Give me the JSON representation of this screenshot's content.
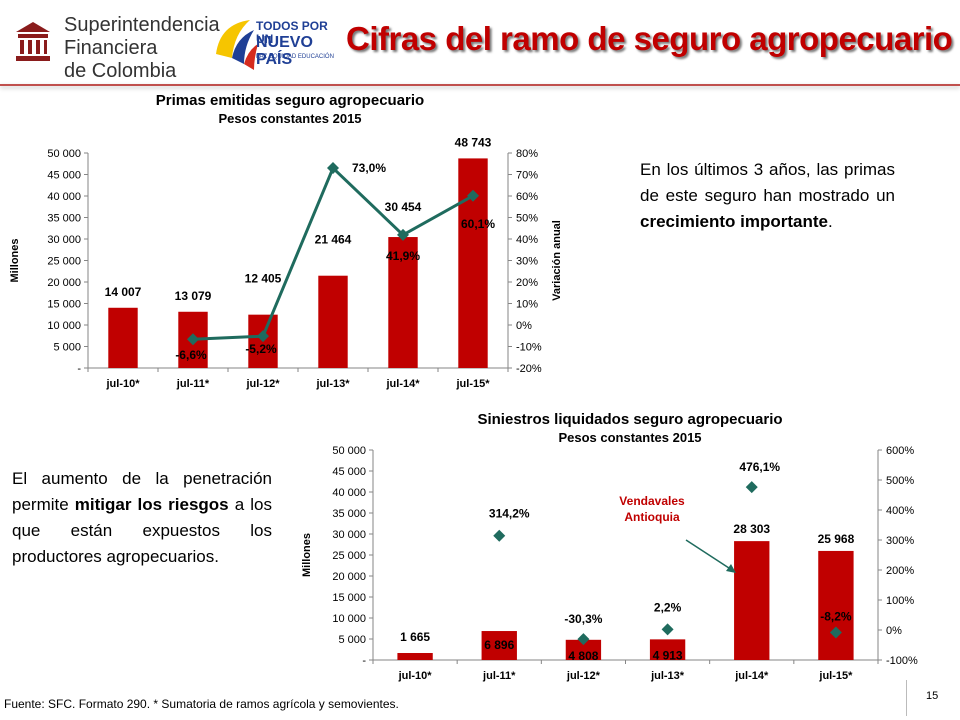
{
  "header": {
    "org_name_lines": [
      "Superintendencia",
      "Financiera",
      "de Colombia"
    ],
    "gov_logo_lines": [
      "TODOS POR UN",
      "NUEVO PAÍS",
      "PAZ  EQUIDAD  EDUCACIÓN"
    ],
    "title": "Cifras del ramo de seguro agropecuario",
    "accent_color": "#c00000"
  },
  "text_top": {
    "before": "En los últimos 3 años, las primas de este seguro han mostrado un ",
    "bold": "crecimiento importante",
    "after": "."
  },
  "text_bottom": {
    "before": "El aumento de la penetración permite ",
    "bold": "mitigar los riesgos",
    "after": " a los que están expuestos los productores agropecuarios."
  },
  "footnote": "Fuente: SFC. Formato 290. * Sumatoria de ramos agrícola y semovientes.",
  "page_number": "15",
  "chart_data": [
    {
      "type": "bar",
      "title": "Primas emitidas seguro agropecuario",
      "subtitle": "Pesos constantes 2015",
      "categories": [
        "jul-10*",
        "jul-11*",
        "jul-12*",
        "jul-13*",
        "jul-14*",
        "jul-15*"
      ],
      "series": [
        {
          "type": "bar",
          "values": [
            14007,
            13079,
            12405,
            21464,
            30454,
            48743
          ],
          "labels": [
            "14 007",
            "13 079",
            "12 405",
            "21 464",
            "30 454",
            "48 743"
          ]
        },
        {
          "type": "line",
          "axis": "right",
          "values": [
            null,
            -6.6,
            -5.2,
            73.0,
            41.9,
            60.1
          ],
          "labels": [
            "",
            "-6,6%",
            "-5,2%",
            "73,0%",
            "41,9%",
            "60,1%"
          ]
        }
      ],
      "ylabel": "Millones",
      "y2label": "Variación anual",
      "ylim": [
        0,
        50000
      ],
      "y2lim": [
        -20,
        80
      ],
      "yticks": [
        "-",
        "5 000",
        "10 000",
        "15 000",
        "20 000",
        "25 000",
        "30 000",
        "35 000",
        "40 000",
        "45 000",
        "50 000"
      ],
      "y2ticks": [
        "-20%",
        "-10%",
        "0%",
        "10%",
        "20%",
        "30%",
        "40%",
        "50%",
        "60%",
        "70%",
        "80%"
      ],
      "bar_color": "#c00000",
      "line_color": "#1f6b5e",
      "grid": false
    },
    {
      "type": "bar",
      "title": "Siniestros liquidados seguro agropecuario",
      "subtitle": "Pesos constantes 2015",
      "categories": [
        "jul-10*",
        "jul-11*",
        "jul-12*",
        "jul-13*",
        "jul-14*",
        "jul-15*"
      ],
      "series": [
        {
          "type": "bar",
          "values": [
            1665,
            6896,
            4808,
            4913,
            28303,
            25968
          ],
          "labels": [
            "1 665",
            "6 896",
            "4 808",
            "4 913",
            "28 303",
            "25 968"
          ]
        },
        {
          "type": "scatter",
          "axis": "right",
          "values": [
            null,
            314.2,
            -30.3,
            2.2,
            476.1,
            -8.2
          ],
          "labels": [
            "",
            "314,2%",
            "-30,3%",
            "2,2%",
            "476,1%",
            "-8,2%"
          ]
        }
      ],
      "ylabel": "Millones",
      "ylim": [
        0,
        50000
      ],
      "y2lim": [
        -100,
        600
      ],
      "yticks": [
        "-",
        "5 000",
        "10 000",
        "15 000",
        "20 000",
        "25 000",
        "30 000",
        "35 000",
        "40 000",
        "45 000",
        "50 000"
      ],
      "y2ticks": [
        "-100%",
        "0%",
        "100%",
        "200%",
        "300%",
        "400%",
        "500%",
        "600%"
      ],
      "annotation": {
        "text_lines": [
          "Vendavales",
          "Antioquia"
        ],
        "color": "#c00000"
      },
      "bar_color": "#c00000",
      "line_color": "#1f6b5e",
      "grid": false
    }
  ]
}
